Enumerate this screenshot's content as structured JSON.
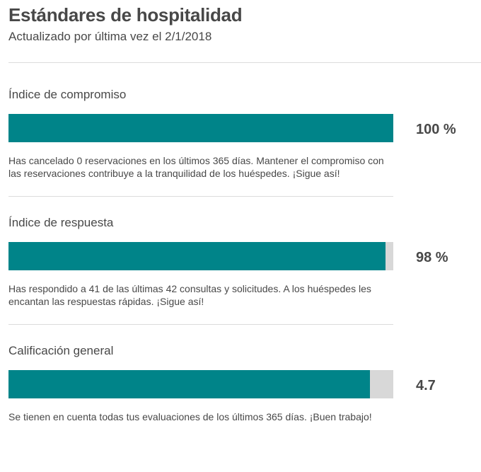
{
  "header": {
    "title": "Estándares de hospitalidad",
    "subtitle": "Actualizado por última vez el 2/1/2018"
  },
  "colors": {
    "accent": "#008489",
    "track": "#d8d8d8"
  },
  "metrics": [
    {
      "label": "Índice de compromiso",
      "value": "100 %",
      "fraction": 1.0,
      "description": "Has cancelado 0 reservaciones en los últimos 365 días. Mantener el compromiso con las reservaciones contribuye a la tranquilidad de los huéspedes. ¡Sigue así!"
    },
    {
      "label": "Índice de respuesta",
      "value": "98 %",
      "fraction": 0.98,
      "description": "Has respondido a 41 de las últimas 42 consultas y solicitudes. A los huéspedes les encantan las respuestas rápidas. ¡Sigue así!"
    },
    {
      "label": "Calificación general",
      "value": "4.7",
      "fraction": 0.94,
      "description": "Se tienen en cuenta todas tus evaluaciones de los últimos 365 días. ¡Buen trabajo!"
    }
  ]
}
